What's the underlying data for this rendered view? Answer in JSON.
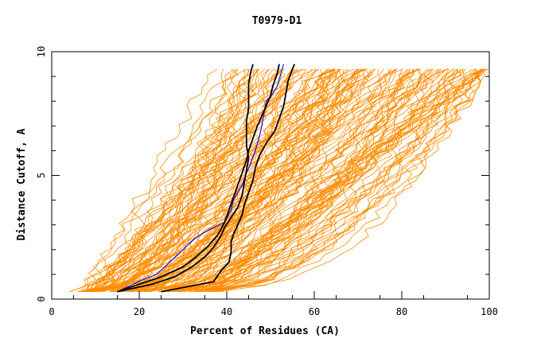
{
  "chart_data": {
    "type": "line",
    "title": "T0979-D1",
    "xlabel": "Percent of Residues (CA)",
    "ylabel": "Distance Cutoff, A",
    "xlim": [
      0,
      100
    ],
    "ylim": [
      0,
      10
    ],
    "x_ticks": [
      0,
      20,
      40,
      60,
      80,
      100
    ],
    "x_tick_labels": [
      "0",
      "20",
      "40",
      "60",
      "80",
      "100"
    ],
    "y_ticks": [
      0,
      5,
      10
    ],
    "y_tick_labels": [
      "0",
      "5",
      "10"
    ],
    "grid": false,
    "legend": "none",
    "colors": {
      "background_models": "#ff8c00",
      "highlight_blue": "#0000ff",
      "highlight_black": "#000000"
    },
    "background_model_count": 150,
    "background_x_range_at_cutoff_0_3": [
      5.5,
      37
    ],
    "background_x_range_at_cutoff_9_5": [
      28.5,
      100
    ],
    "series": [
      {
        "color": "#0000ff",
        "x": [
          15.0,
          21.0,
          24.0,
          27.0,
          30.0,
          33.0,
          36.0,
          39.5,
          41.0,
          41.5,
          43.5,
          44.5,
          45.5,
          46.5,
          47.5,
          48.0,
          48.5,
          49.0,
          50.5,
          51.5,
          52.5,
          53.0
        ],
        "y": [
          0.3,
          0.8,
          1.0,
          1.5,
          2.0,
          2.5,
          2.8,
          3.1,
          3.6,
          4.0,
          4.6,
          5.1,
          5.5,
          6.0,
          6.6,
          7.0,
          7.5,
          8.0,
          8.3,
          8.6,
          9.2,
          9.5
        ]
      },
      {
        "color": "#000000",
        "x": [
          15.0,
          20.0,
          25.0,
          30.0,
          33.0,
          35.5,
          38.0,
          39.5,
          40.5,
          41.5,
          42.5,
          43.5,
          44.5,
          45.0,
          46.0,
          47.0,
          48.0,
          49.0,
          50.0,
          50.5,
          51.5,
          52.0
        ],
        "y": [
          0.3,
          0.6,
          0.9,
          1.3,
          1.7,
          2.1,
          2.6,
          3.1,
          3.6,
          4.1,
          4.6,
          5.1,
          5.6,
          6.0,
          6.5,
          7.0,
          7.4,
          7.8,
          8.2,
          8.6,
          9.1,
          9.5
        ]
      },
      {
        "color": "#000000",
        "x": [
          15.0,
          23.0,
          28.0,
          32.0,
          35.0,
          37.0,
          38.5,
          39.5,
          41.0,
          42.5,
          43.5,
          44.0,
          44.5,
          45.0,
          44.5,
          44.5,
          44.5,
          45.0,
          45.0,
          45.0,
          45.5,
          46.0
        ],
        "y": [
          0.3,
          0.6,
          0.9,
          1.3,
          1.7,
          2.1,
          2.5,
          2.9,
          3.3,
          3.7,
          4.2,
          4.7,
          5.2,
          5.7,
          6.2,
          6.7,
          7.2,
          7.7,
          8.2,
          8.7,
          9.2,
          9.5
        ]
      },
      {
        "color": "#000000",
        "x": [
          25.0,
          37.0,
          38.5,
          40.5,
          41.0,
          41.0,
          41.5,
          42.5,
          43.5,
          44.0,
          45.0,
          46.0,
          46.5,
          47.5,
          49.0,
          51.0,
          52.0,
          53.0,
          53.5,
          54.0,
          55.0,
          55.5
        ],
        "y": [
          0.3,
          0.7,
          1.1,
          1.5,
          1.9,
          2.3,
          2.6,
          3.0,
          3.4,
          3.8,
          4.3,
          4.8,
          5.3,
          5.8,
          6.3,
          6.8,
          7.3,
          7.8,
          8.3,
          8.8,
          9.3,
          9.5
        ]
      }
    ]
  }
}
